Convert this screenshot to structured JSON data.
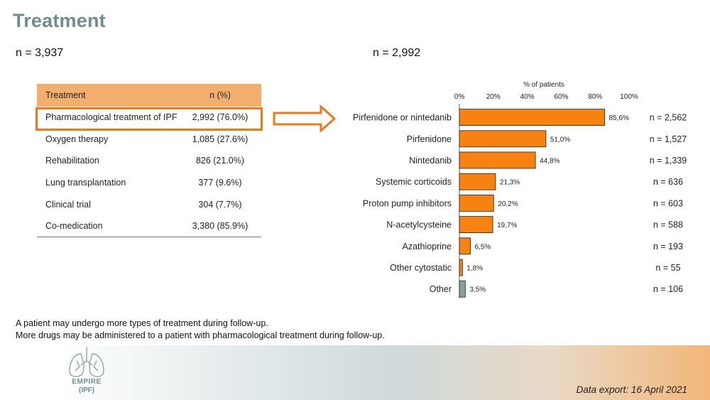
{
  "title": "Treatment",
  "left_n": "n = 3,937",
  "right_n": "n = 2,992",
  "table": {
    "headers": [
      "Treatment",
      "n (%)"
    ],
    "rows": [
      {
        "treatment": "Pharmacological treatment of IPF",
        "n": "2,992 (76.0%)"
      },
      {
        "treatment": "Oxygen therapy",
        "n": "1,085 (27.6%)"
      },
      {
        "treatment": "Rehabilitation",
        "n": "826 (21.0%)"
      },
      {
        "treatment": "Lung transplantation",
        "n": "377 (9.6%)"
      },
      {
        "treatment": "Clinical trial",
        "n": "304 (7.7%)"
      },
      {
        "treatment": "Co-medication",
        "n": "3,380 (85.9%)"
      }
    ]
  },
  "chart_data": {
    "type": "bar",
    "orientation": "horizontal",
    "xlabel": "% of patients",
    "xlim": [
      0,
      100
    ],
    "xticks": [
      "0%",
      "20%",
      "40%",
      "60%",
      "80%",
      "100%"
    ],
    "categories": [
      "Pirfenidone or nintedanib",
      "Pirfenidone",
      "Nintedanib",
      "Systemic corticoids",
      "Proton pump inhibitors",
      "N-acetylcysteine",
      "Azathioprine",
      "Other cytostatic",
      "Other"
    ],
    "values": [
      85.6,
      51.0,
      44.8,
      21.3,
      20.2,
      19.7,
      6.5,
      1.8,
      3.5
    ],
    "value_labels": [
      "85,6%",
      "51,0%",
      "44,8%",
      "21,3%",
      "20,2%",
      "19,7%",
      "6,5%",
      "1,8%",
      "3,5%"
    ],
    "counts": [
      "n = 2,562",
      "n = 1,527",
      "n = 1,339",
      "n = 636",
      "n = 603",
      "n = 588",
      "n = 193",
      "n = 55",
      "n = 106"
    ],
    "colors": [
      "#f7820f",
      "#f7820f",
      "#f7820f",
      "#f7820f",
      "#f7820f",
      "#f7820f",
      "#f7820f",
      "#f7820f",
      "#8a9e99"
    ],
    "grid": false
  },
  "footnotes": [
    "A patient may undergo more types of treatment during follow-up.",
    "More drugs may be administered to a patient with pharmacological treatment during follow-up."
  ],
  "logo": {
    "line1": "EMPIRE",
    "line2": "(IPF)"
  },
  "export": "Data export: 16 April 2021",
  "colors": {
    "title": "#6f8d8f",
    "accent": "#ec7a1b",
    "header": "#f2ae6f"
  }
}
